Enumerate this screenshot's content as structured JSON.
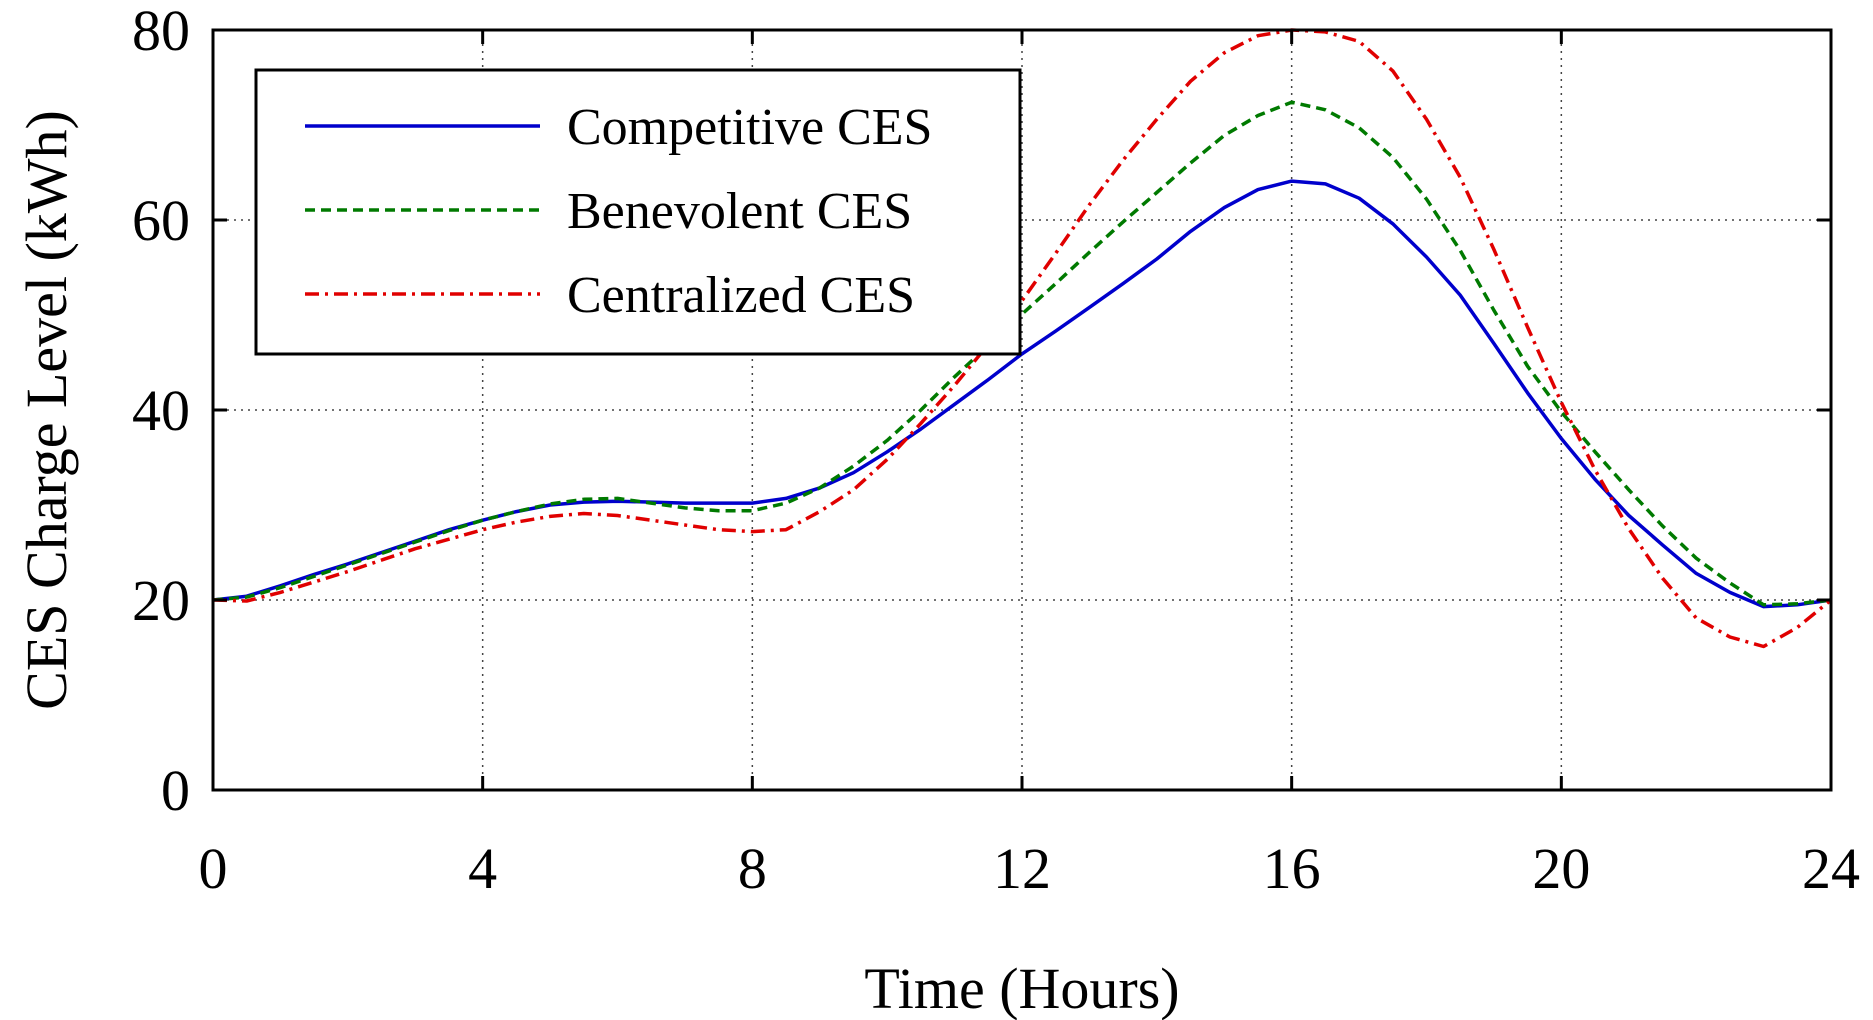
{
  "chart_data": {
    "type": "line",
    "title": "",
    "xlabel": "Time (Hours)",
    "ylabel": "CES Charge Level (kWh)",
    "xlim": [
      0,
      24
    ],
    "ylim": [
      0,
      80
    ],
    "xticks": [
      0,
      4,
      8,
      12,
      16,
      20,
      24
    ],
    "yticks": [
      0,
      20,
      40,
      60,
      80
    ],
    "grid": true,
    "legend_position": "top-left",
    "x": [
      0,
      0.5,
      1,
      1.5,
      2,
      2.5,
      3,
      3.5,
      4,
      4.5,
      5,
      5.5,
      6,
      6.5,
      7,
      7.5,
      8,
      8.5,
      9,
      9.5,
      10,
      10.5,
      11,
      11.5,
      12,
      12.5,
      13,
      13.5,
      14,
      14.5,
      15,
      15.5,
      16,
      16.5,
      17,
      17.5,
      18,
      18.5,
      19,
      19.5,
      20,
      20.5,
      21,
      21.5,
      22,
      22.5,
      23,
      23.5,
      24
    ],
    "series": [
      {
        "name": "Competitive CES",
        "color": "#0000cc",
        "style": "solid",
        "values": [
          20,
          20.4,
          21.5,
          22.7,
          23.8,
          25,
          26.2,
          27.4,
          28.4,
          29.3,
          30,
          30.3,
          30.4,
          30.3,
          30.2,
          30.2,
          30.2,
          30.7,
          31.8,
          33.4,
          35.6,
          38,
          40.6,
          43.2,
          45.9,
          48.3,
          50.8,
          53.3,
          55.9,
          58.8,
          61.3,
          63.2,
          64.1,
          63.8,
          62.3,
          59.6,
          56.1,
          52.1,
          47,
          41.8,
          37,
          32.7,
          28.9,
          25.8,
          22.8,
          20.8,
          19.3,
          19.5,
          20
        ]
      },
      {
        "name": "Benevolent CES",
        "color": "#007a00",
        "style": "dashed",
        "values": [
          20,
          20.3,
          21.3,
          22.5,
          23.7,
          24.9,
          26.1,
          27.3,
          28.4,
          29.3,
          30.1,
          30.6,
          30.7,
          30.2,
          29.7,
          29.4,
          29.4,
          30.2,
          31.8,
          34.1,
          36.8,
          40,
          43.5,
          46.8,
          50.1,
          53.3,
          56.6,
          59.8,
          62.9,
          66,
          68.9,
          71,
          72.4,
          71.6,
          69.7,
          66.6,
          62.2,
          56.8,
          50.5,
          44.6,
          39.8,
          35.6,
          31.6,
          27.8,
          24.4,
          21.8,
          19.5,
          19.6,
          20
        ]
      },
      {
        "name": "Centralized CES",
        "color": "#e00000",
        "style": "dashdot",
        "values": [
          20,
          19.9,
          20.8,
          21.9,
          23,
          24.2,
          25.4,
          26.4,
          27.4,
          28.2,
          28.8,
          29.1,
          28.9,
          28.4,
          27.9,
          27.4,
          27.2,
          27.4,
          29.3,
          31.6,
          34.8,
          38.6,
          42.6,
          46.9,
          51.5,
          56.5,
          61.6,
          66.3,
          70.6,
          74.6,
          77.6,
          79.4,
          80,
          79.8,
          78.8,
          75.7,
          70.6,
          64.5,
          56.9,
          48.7,
          40.8,
          33.7,
          27.5,
          22.3,
          18.1,
          16.1,
          15.1,
          17.1,
          20
        ]
      }
    ]
  }
}
